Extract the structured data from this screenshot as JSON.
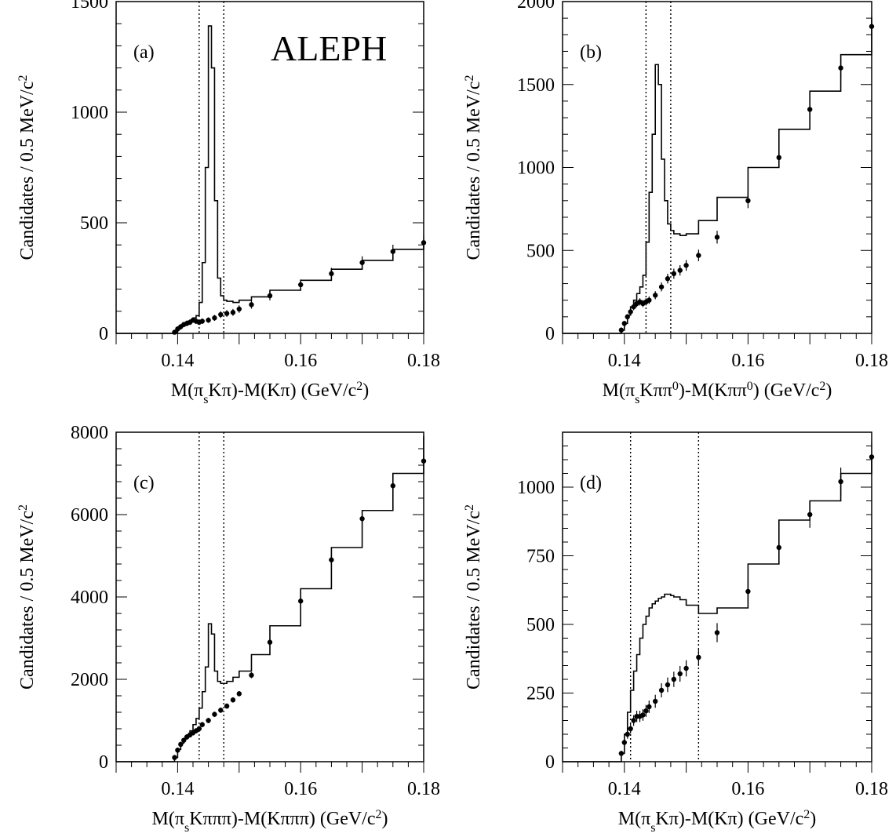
{
  "chart_data": [
    {
      "type": "histogram",
      "panel_label": "(a)",
      "experiment_label": "ALEPH",
      "xlabel": {
        "pre": "M(π",
        "sub1": "s",
        "mid": "Kπ)-M(Kπ)  (GeV/c",
        "sup": "2",
        "post": ")"
      },
      "ylabel": {
        "pre": "Candidates / 0.5 MeV/c",
        "sup": "2"
      },
      "xlim": [
        0.13,
        0.18
      ],
      "ylim": [
        0,
        1500
      ],
      "xticks": [
        "0.14",
        "0.16",
        "0.18"
      ],
      "yticks": [
        "0",
        "500",
        "1000",
        "1500"
      ],
      "cut_lines_x": [
        0.1435,
        0.1475
      ],
      "series": [
        {
          "style": "histogram",
          "x": [
            0.1395,
            0.14,
            0.1405,
            0.141,
            0.1415,
            0.142,
            0.1425,
            0.143,
            0.1435,
            0.144,
            0.1445,
            0.145,
            0.1455,
            0.146,
            0.1465,
            0.147,
            0.1475,
            0.148,
            0.149,
            0.15,
            0.152,
            0.155,
            0.16,
            0.165,
            0.17,
            0.175,
            0.18
          ],
          "values": [
            5,
            20,
            35,
            45,
            55,
            60,
            70,
            80,
            140,
            320,
            750,
            1390,
            1200,
            600,
            250,
            170,
            150,
            145,
            140,
            150,
            165,
            195,
            240,
            290,
            330,
            380,
            420
          ]
        },
        {
          "style": "points",
          "x": [
            0.1395,
            0.14,
            0.1405,
            0.141,
            0.1415,
            0.142,
            0.1425,
            0.143,
            0.1435,
            0.144,
            0.145,
            0.146,
            0.147,
            0.148,
            0.149,
            0.15,
            0.152,
            0.155,
            0.16,
            0.165,
            0.17,
            0.175,
            0.18
          ],
          "values": [
            5,
            20,
            30,
            40,
            45,
            50,
            60,
            55,
            50,
            55,
            60,
            70,
            85,
            90,
            95,
            110,
            130,
            170,
            220,
            270,
            320,
            370,
            410
          ]
        }
      ]
    },
    {
      "type": "histogram",
      "panel_label": "(b)",
      "xlabel": {
        "pre": "M(π",
        "sub1": "s",
        "mid": "Kππ",
        "sup1": "0",
        "mid2": ")-M(Kππ",
        "sup2": "0",
        "mid3": ")  (GeV/c",
        "sup": "2",
        "post": ")"
      },
      "ylabel": {
        "pre": "Candidates / 0.5 MeV/c",
        "sup": "2"
      },
      "xlim": [
        0.13,
        0.18
      ],
      "ylim": [
        0,
        2000
      ],
      "xticks": [
        "0.14",
        "0.16",
        "0.18"
      ],
      "yticks": [
        "0",
        "500",
        "1000",
        "1500",
        "2000"
      ],
      "cut_lines_x": [
        0.1435,
        0.1475
      ],
      "series": [
        {
          "style": "histogram",
          "x": [
            0.1395,
            0.14,
            0.1405,
            0.141,
            0.1415,
            0.142,
            0.1425,
            0.143,
            0.1435,
            0.144,
            0.1445,
            0.145,
            0.1455,
            0.146,
            0.1465,
            0.147,
            0.1475,
            0.148,
            0.149,
            0.15,
            0.152,
            0.155,
            0.16,
            0.165,
            0.17,
            0.175,
            0.18
          ],
          "values": [
            20,
            60,
            110,
            160,
            200,
            240,
            280,
            350,
            550,
            850,
            1200,
            1620,
            1500,
            1050,
            800,
            660,
            620,
            600,
            590,
            600,
            680,
            820,
            1000,
            1230,
            1460,
            1680,
            1900
          ]
        },
        {
          "style": "points",
          "x": [
            0.1395,
            0.14,
            0.1405,
            0.141,
            0.1415,
            0.142,
            0.1425,
            0.143,
            0.1435,
            0.144,
            0.145,
            0.146,
            0.147,
            0.148,
            0.149,
            0.15,
            0.152,
            0.155,
            0.16,
            0.165,
            0.17,
            0.175,
            0.18
          ],
          "values": [
            20,
            60,
            100,
            130,
            160,
            180,
            190,
            180,
            190,
            200,
            230,
            280,
            330,
            360,
            380,
            410,
            470,
            580,
            800,
            1060,
            1350,
            1600,
            1850
          ]
        }
      ]
    },
    {
      "type": "histogram",
      "panel_label": "(c)",
      "xlabel": {
        "pre": "M(π",
        "sub1": "s",
        "mid": "Kπππ)-M(Kπππ)  (GeV/c",
        "sup": "2",
        "post": ")"
      },
      "ylabel": {
        "pre": "Candidates / 0.5 MeV/c",
        "sup": "2"
      },
      "xlim": [
        0.13,
        0.18
      ],
      "ylim": [
        0,
        8000
      ],
      "xticks": [
        "0.14",
        "0.16",
        "0.18"
      ],
      "yticks": [
        "0",
        "2000",
        "4000",
        "6000",
        "8000"
      ],
      "cut_lines_x": [
        0.1435,
        0.1475
      ],
      "series": [
        {
          "style": "histogram",
          "x": [
            0.1395,
            0.14,
            0.1405,
            0.141,
            0.1415,
            0.142,
            0.1425,
            0.143,
            0.1435,
            0.144,
            0.1445,
            0.145,
            0.1455,
            0.146,
            0.1465,
            0.147,
            0.1475,
            0.148,
            0.149,
            0.15,
            0.152,
            0.155,
            0.16,
            0.165,
            0.17,
            0.175,
            0.18
          ],
          "values": [
            100,
            300,
            450,
            550,
            650,
            750,
            900,
            1050,
            1300,
            1700,
            2300,
            3350,
            3100,
            2200,
            1950,
            1900,
            1900,
            1950,
            2050,
            2200,
            2600,
            3300,
            4200,
            5200,
            6100,
            7000,
            7900
          ]
        },
        {
          "style": "points",
          "x": [
            0.1395,
            0.14,
            0.1405,
            0.141,
            0.1415,
            0.142,
            0.1425,
            0.143,
            0.1435,
            0.144,
            0.145,
            0.146,
            0.147,
            0.148,
            0.149,
            0.15,
            0.152,
            0.155,
            0.16,
            0.165,
            0.17,
            0.175,
            0.18
          ],
          "values": [
            100,
            280,
            420,
            520,
            600,
            650,
            700,
            750,
            800,
            900,
            1000,
            1150,
            1250,
            1350,
            1500,
            1650,
            2100,
            2900,
            3900,
            4900,
            5900,
            6700,
            7300
          ]
        }
      ]
    },
    {
      "type": "histogram",
      "panel_label": "(d)",
      "xlabel": {
        "pre": "M(π",
        "sub1": "s",
        "mid": "Kπ)-M(Kπ)  (GeV/c",
        "sup": "2",
        "post": ")"
      },
      "ylabel": {
        "pre": "Candidates / 0.5 MeV/c",
        "sup": "2"
      },
      "xlim": [
        0.13,
        0.18
      ],
      "ylim": [
        0,
        1200
      ],
      "xticks": [
        "0.14",
        "0.16",
        "0.18"
      ],
      "yticks": [
        "0",
        "250",
        "500",
        "750",
        "1000"
      ],
      "cut_lines_x": [
        0.141,
        0.152
      ],
      "series": [
        {
          "style": "histogram",
          "x": [
            0.1395,
            0.14,
            0.1405,
            0.141,
            0.1415,
            0.142,
            0.1425,
            0.143,
            0.1435,
            0.144,
            0.1445,
            0.145,
            0.1455,
            0.146,
            0.1465,
            0.147,
            0.1475,
            0.148,
            0.149,
            0.15,
            0.152,
            0.155,
            0.16,
            0.165,
            0.17,
            0.175,
            0.18
          ],
          "values": [
            30,
            100,
            180,
            260,
            330,
            390,
            450,
            500,
            530,
            560,
            575,
            585,
            595,
            600,
            610,
            610,
            605,
            600,
            590,
            570,
            540,
            560,
            720,
            880,
            950,
            1050,
            1120
          ]
        },
        {
          "style": "points",
          "x": [
            0.1395,
            0.14,
            0.1405,
            0.141,
            0.1415,
            0.142,
            0.1425,
            0.143,
            0.1435,
            0.144,
            0.145,
            0.146,
            0.147,
            0.148,
            0.149,
            0.15,
            0.152,
            0.155,
            0.16,
            0.165,
            0.17,
            0.175,
            0.18
          ],
          "values": [
            30,
            70,
            100,
            120,
            150,
            165,
            165,
            170,
            185,
            200,
            220,
            260,
            280,
            300,
            320,
            340,
            380,
            470,
            620,
            780,
            900,
            1020,
            1110
          ]
        }
      ]
    }
  ]
}
